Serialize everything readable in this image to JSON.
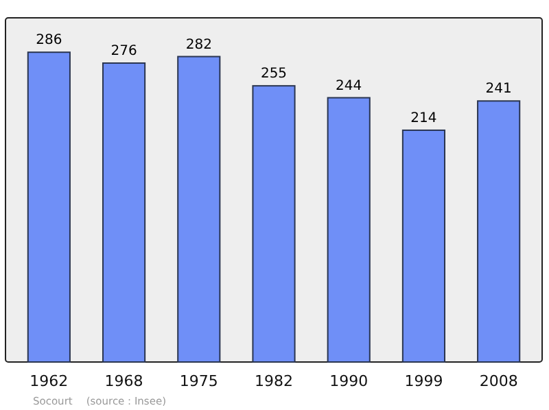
{
  "chart_data": {
    "type": "bar",
    "categories": [
      "1962",
      "1968",
      "1975",
      "1982",
      "1990",
      "1999",
      "2008"
    ],
    "values": [
      286,
      276,
      282,
      255,
      244,
      214,
      241
    ],
    "color": "#6f8ff7",
    "data_labels": true,
    "annotations": [
      "Socourt",
      "(source : Insee)"
    ]
  }
}
